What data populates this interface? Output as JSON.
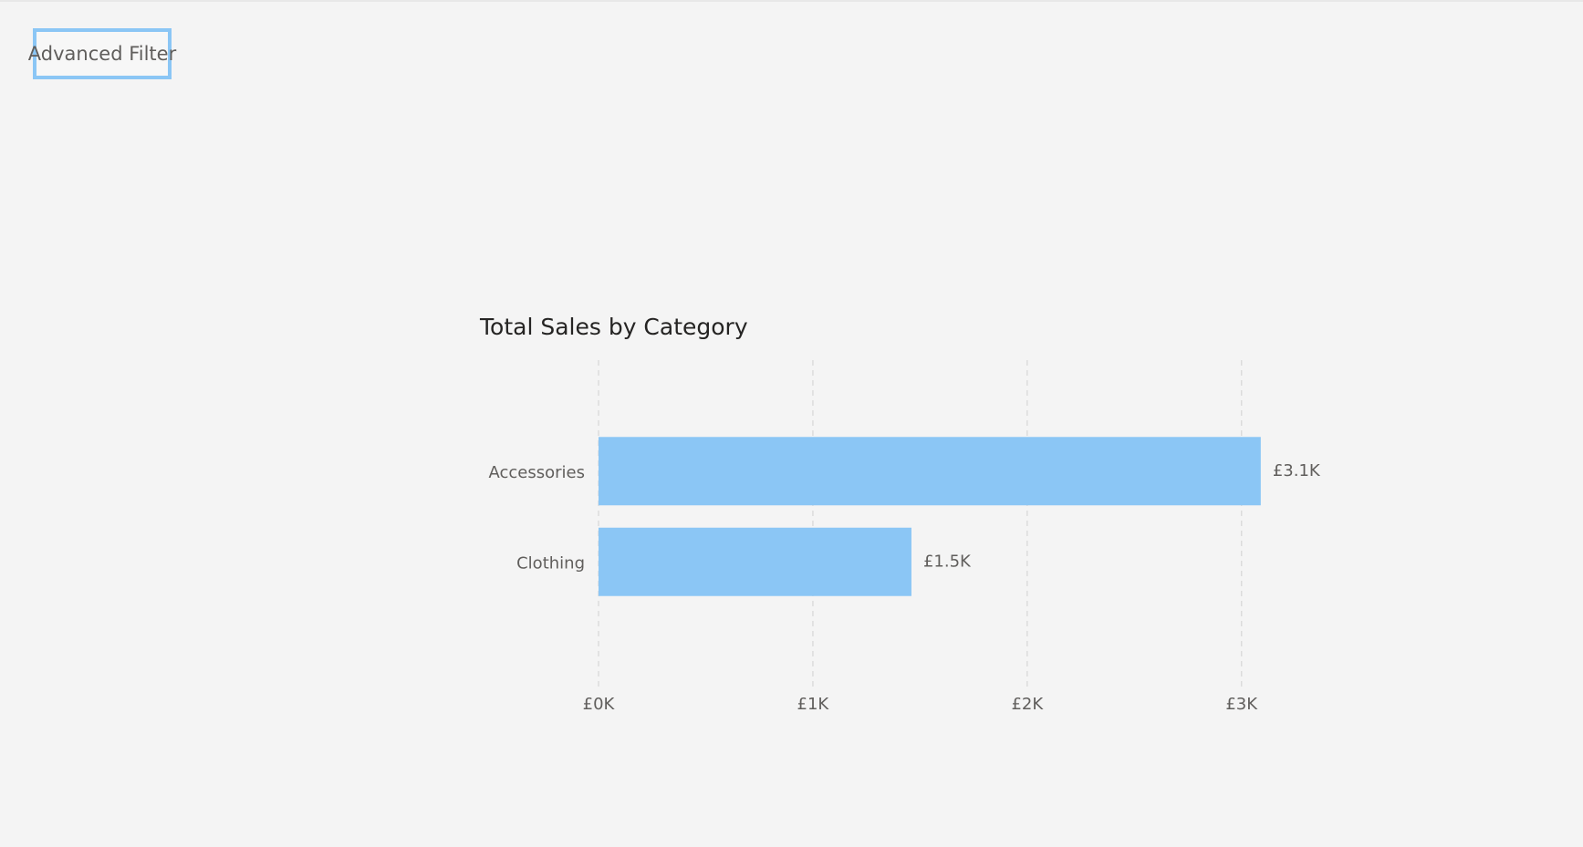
{
  "filter_button": {
    "label": "Advanced Filter"
  },
  "chart_data": {
    "type": "bar",
    "orientation": "horizontal",
    "title": "Total Sales by Category",
    "categories": [
      "Accessories",
      "Clothing"
    ],
    "values": [
      3090,
      1460
    ],
    "value_labels": [
      "£3.1K",
      "£1.5K"
    ],
    "color": "#8bc6f5",
    "xlim": [
      0,
      3100
    ],
    "xticks": [
      {
        "value": 0,
        "label": "£0K"
      },
      {
        "value": 1000,
        "label": "£1K"
      },
      {
        "value": 2000,
        "label": "£2K"
      },
      {
        "value": 3000,
        "label": "£3K"
      }
    ],
    "grid": true
  }
}
